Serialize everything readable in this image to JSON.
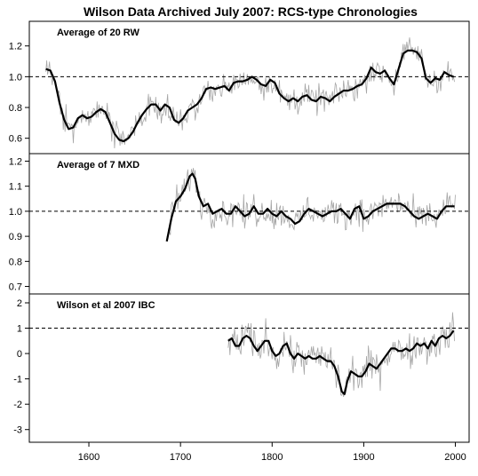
{
  "chart_data": {
    "type": "line",
    "title": "Wilson Data Archived July 2007: RCS-type Chronologies",
    "xlim": [
      1535,
      2015
    ],
    "xticks": [
      1600,
      1700,
      1800,
      1900,
      2000
    ],
    "xtick_labels": [
      "1600",
      "1700",
      "1800",
      "1900",
      "2000"
    ],
    "grid": false,
    "panels": [
      {
        "label": "Average of 20 RW",
        "ylim": [
          0.5,
          1.36
        ],
        "yticks": [
          0.6,
          0.8,
          1.0,
          1.2
        ],
        "ytick_labels": [
          "0.6",
          "0.8",
          "1.0",
          "1.2"
        ],
        "reference_line": 1.0,
        "smooth": [
          [
            1553,
            1.05
          ],
          [
            1558,
            1.04
          ],
          [
            1563,
            0.97
          ],
          [
            1568,
            0.83
          ],
          [
            1573,
            0.72
          ],
          [
            1578,
            0.66
          ],
          [
            1583,
            0.67
          ],
          [
            1588,
            0.73
          ],
          [
            1593,
            0.75
          ],
          [
            1598,
            0.73
          ],
          [
            1603,
            0.74
          ],
          [
            1608,
            0.77
          ],
          [
            1613,
            0.79
          ],
          [
            1618,
            0.77
          ],
          [
            1623,
            0.7
          ],
          [
            1628,
            0.63
          ],
          [
            1633,
            0.59
          ],
          [
            1638,
            0.58
          ],
          [
            1643,
            0.6
          ],
          [
            1648,
            0.64
          ],
          [
            1653,
            0.7
          ],
          [
            1658,
            0.75
          ],
          [
            1663,
            0.79
          ],
          [
            1668,
            0.82
          ],
          [
            1673,
            0.82
          ],
          [
            1678,
            0.78
          ],
          [
            1683,
            0.82
          ],
          [
            1688,
            0.8
          ],
          [
            1693,
            0.72
          ],
          [
            1698,
            0.7
          ],
          [
            1703,
            0.73
          ],
          [
            1708,
            0.78
          ],
          [
            1713,
            0.8
          ],
          [
            1718,
            0.82
          ],
          [
            1723,
            0.86
          ],
          [
            1728,
            0.92
          ],
          [
            1733,
            0.93
          ],
          [
            1738,
            0.92
          ],
          [
            1743,
            0.93
          ],
          [
            1748,
            0.94
          ],
          [
            1753,
            0.91
          ],
          [
            1758,
            0.96
          ],
          [
            1763,
            0.97
          ],
          [
            1768,
            0.97
          ],
          [
            1773,
            0.98
          ],
          [
            1778,
            1.0
          ],
          [
            1783,
            0.98
          ],
          [
            1788,
            0.95
          ],
          [
            1793,
            0.94
          ],
          [
            1798,
            0.98
          ],
          [
            1803,
            0.96
          ],
          [
            1808,
            0.89
          ],
          [
            1813,
            0.86
          ],
          [
            1818,
            0.84
          ],
          [
            1823,
            0.86
          ],
          [
            1828,
            0.84
          ],
          [
            1833,
            0.87
          ],
          [
            1838,
            0.88
          ],
          [
            1843,
            0.85
          ],
          [
            1848,
            0.84
          ],
          [
            1853,
            0.87
          ],
          [
            1858,
            0.86
          ],
          [
            1863,
            0.84
          ],
          [
            1868,
            0.87
          ],
          [
            1873,
            0.89
          ],
          [
            1878,
            0.91
          ],
          [
            1883,
            0.91
          ],
          [
            1888,
            0.92
          ],
          [
            1893,
            0.94
          ],
          [
            1898,
            0.95
          ],
          [
            1903,
            0.99
          ],
          [
            1908,
            1.06
          ],
          [
            1913,
            1.03
          ],
          [
            1918,
            1.02
          ],
          [
            1923,
            1.04
          ],
          [
            1928,
            0.99
          ],
          [
            1933,
            0.95
          ],
          [
            1938,
            1.05
          ],
          [
            1943,
            1.15
          ],
          [
            1948,
            1.17
          ],
          [
            1953,
            1.17
          ],
          [
            1958,
            1.16
          ],
          [
            1963,
            1.12
          ],
          [
            1968,
            0.99
          ],
          [
            1973,
            0.96
          ],
          [
            1978,
            0.99
          ],
          [
            1983,
            0.98
          ],
          [
            1988,
            1.03
          ],
          [
            1993,
            1.01
          ],
          [
            1998,
            1.0
          ]
        ]
      },
      {
        "label": "Average of 7 MXD",
        "ylim": [
          0.67,
          1.23
        ],
        "yticks": [
          0.7,
          0.8,
          0.9,
          1.0,
          1.1,
          1.2
        ],
        "ytick_labels": [
          "0.7",
          "0.8",
          "0.9",
          "1.0",
          "1.1",
          "1.2"
        ],
        "reference_line": 1.0,
        "smooth": [
          [
            1685,
            0.88
          ],
          [
            1690,
            0.97
          ],
          [
            1695,
            1.04
          ],
          [
            1700,
            1.06
          ],
          [
            1705,
            1.09
          ],
          [
            1710,
            1.14
          ],
          [
            1713,
            1.15
          ],
          [
            1716,
            1.13
          ],
          [
            1720,
            1.06
          ],
          [
            1725,
            1.02
          ],
          [
            1730,
            1.03
          ],
          [
            1735,
            0.99
          ],
          [
            1740,
            1.0
          ],
          [
            1745,
            1.01
          ],
          [
            1750,
            0.99
          ],
          [
            1755,
            0.99
          ],
          [
            1760,
            1.02
          ],
          [
            1765,
            1.0
          ],
          [
            1770,
            0.98
          ],
          [
            1775,
            0.99
          ],
          [
            1780,
            1.02
          ],
          [
            1785,
            0.99
          ],
          [
            1790,
            0.99
          ],
          [
            1795,
            1.01
          ],
          [
            1800,
            0.99
          ],
          [
            1805,
            0.98
          ],
          [
            1810,
            1.0
          ],
          [
            1815,
            0.98
          ],
          [
            1820,
            0.97
          ],
          [
            1825,
            0.95
          ],
          [
            1830,
            0.96
          ],
          [
            1835,
            0.99
          ],
          [
            1840,
            1.01
          ],
          [
            1845,
            1.0
          ],
          [
            1850,
            0.99
          ],
          [
            1855,
            0.98
          ],
          [
            1860,
            0.99
          ],
          [
            1865,
            1.0
          ],
          [
            1870,
            1.0
          ],
          [
            1875,
            1.01
          ],
          [
            1880,
            0.99
          ],
          [
            1885,
            0.97
          ],
          [
            1890,
            1.01
          ],
          [
            1895,
            1.02
          ],
          [
            1900,
            0.97
          ],
          [
            1905,
            0.98
          ],
          [
            1910,
            1.0
          ],
          [
            1915,
            1.01
          ],
          [
            1920,
            1.02
          ],
          [
            1925,
            1.03
          ],
          [
            1930,
            1.03
          ],
          [
            1935,
            1.03
          ],
          [
            1940,
            1.03
          ],
          [
            1945,
            1.02
          ],
          [
            1950,
            1.0
          ],
          [
            1955,
            0.98
          ],
          [
            1960,
            0.97
          ],
          [
            1965,
            0.98
          ],
          [
            1970,
            0.99
          ],
          [
            1975,
            0.98
          ],
          [
            1980,
            0.97
          ],
          [
            1985,
            1.0
          ],
          [
            1990,
            1.02
          ],
          [
            1995,
            1.02
          ],
          [
            1999,
            1.02
          ]
        ]
      },
      {
        "label": "Wilson et al 2007 IBC",
        "ylim": [
          -3.5,
          2.35
        ],
        "yticks": [
          -3,
          -2,
          -1,
          0,
          1,
          2
        ],
        "ytick_labels": [
          "-3",
          "-2",
          "-1",
          "0",
          "1",
          "2"
        ],
        "reference_line": 1,
        "smooth": [
          [
            1752,
            0.5
          ],
          [
            1756,
            0.6
          ],
          [
            1760,
            0.3
          ],
          [
            1764,
            0.3
          ],
          [
            1768,
            0.6
          ],
          [
            1772,
            0.7
          ],
          [
            1776,
            0.6
          ],
          [
            1780,
            0.3
          ],
          [
            1784,
            0.1
          ],
          [
            1788,
            0.3
          ],
          [
            1792,
            0.5
          ],
          [
            1796,
            0.5
          ],
          [
            1800,
            0.1
          ],
          [
            1804,
            -0.1
          ],
          [
            1808,
            0.0
          ],
          [
            1812,
            0.3
          ],
          [
            1816,
            0.4
          ],
          [
            1820,
            0.0
          ],
          [
            1824,
            -0.2
          ],
          [
            1828,
            0.0
          ],
          [
            1832,
            -0.1
          ],
          [
            1836,
            -0.2
          ],
          [
            1840,
            -0.1
          ],
          [
            1844,
            -0.2
          ],
          [
            1848,
            -0.2
          ],
          [
            1852,
            -0.1
          ],
          [
            1856,
            -0.2
          ],
          [
            1860,
            -0.3
          ],
          [
            1864,
            -0.3
          ],
          [
            1868,
            -0.5
          ],
          [
            1872,
            -0.9
          ],
          [
            1876,
            -1.5
          ],
          [
            1879,
            -1.6
          ],
          [
            1882,
            -1.1
          ],
          [
            1886,
            -0.7
          ],
          [
            1890,
            -0.8
          ],
          [
            1894,
            -0.9
          ],
          [
            1898,
            -0.9
          ],
          [
            1902,
            -0.7
          ],
          [
            1906,
            -0.4
          ],
          [
            1910,
            -0.5
          ],
          [
            1914,
            -0.6
          ],
          [
            1918,
            -0.4
          ],
          [
            1922,
            -0.2
          ],
          [
            1926,
            0.0
          ],
          [
            1930,
            0.2
          ],
          [
            1934,
            0.2
          ],
          [
            1938,
            0.1
          ],
          [
            1942,
            0.1
          ],
          [
            1946,
            0.2
          ],
          [
            1950,
            0.1
          ],
          [
            1954,
            0.2
          ],
          [
            1958,
            0.4
          ],
          [
            1962,
            0.3
          ],
          [
            1966,
            0.4
          ],
          [
            1970,
            0.2
          ],
          [
            1974,
            0.5
          ],
          [
            1978,
            0.3
          ],
          [
            1982,
            0.6
          ],
          [
            1986,
            0.7
          ],
          [
            1990,
            0.6
          ],
          [
            1994,
            0.7
          ],
          [
            1998,
            0.9
          ]
        ]
      }
    ]
  },
  "colors": {
    "annual_series": "#a6a6a6",
    "smoothed_series": "#000000",
    "frame": "#000000"
  }
}
